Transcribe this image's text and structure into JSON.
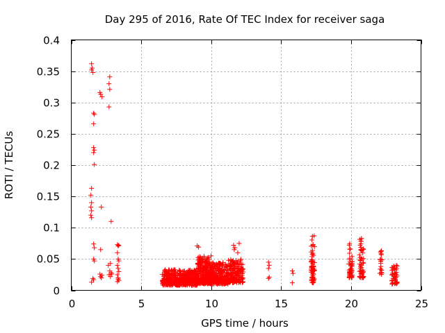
{
  "chart_data": {
    "type": "scatter",
    "title": "Day 295 of 2016, Rate Of TEC Index for receiver saga",
    "xlabel": "GPS time / hours",
    "ylabel": "ROTI / TECUs",
    "xlim": [
      0,
      25
    ],
    "ylim": [
      0,
      0.4
    ],
    "xticks": [
      "0",
      "5",
      "10",
      "15",
      "20",
      "25"
    ],
    "yticks": [
      "0",
      "0.05",
      "0.1",
      "0.15",
      "0.2",
      "0.25",
      "0.3",
      "0.35",
      "0.4"
    ],
    "grid": true,
    "marker": "+",
    "color": "#ff0000",
    "series": [
      {
        "name": "ROTI",
        "points": [
          [
            1.45,
            0.362
          ],
          [
            1.45,
            0.352
          ],
          [
            1.5,
            0.355
          ],
          [
            1.55,
            0.348
          ],
          [
            1.6,
            0.283
          ],
          [
            1.65,
            0.281
          ],
          [
            1.6,
            0.266
          ],
          [
            1.6,
            0.228
          ],
          [
            1.65,
            0.224
          ],
          [
            1.6,
            0.22
          ],
          [
            1.65,
            0.201
          ],
          [
            1.45,
            0.163
          ],
          [
            1.4,
            0.152
          ],
          [
            1.45,
            0.14
          ],
          [
            1.4,
            0.133
          ],
          [
            1.45,
            0.127
          ],
          [
            1.4,
            0.12
          ],
          [
            1.45,
            0.116
          ],
          [
            1.6,
            0.074
          ],
          [
            1.65,
            0.068
          ],
          [
            1.6,
            0.05
          ],
          [
            1.65,
            0.047
          ],
          [
            1.55,
            0.019
          ],
          [
            1.6,
            0.017
          ],
          [
            1.45,
            0.013
          ],
          [
            2.05,
            0.316
          ],
          [
            2.1,
            0.313
          ],
          [
            2.2,
            0.309
          ],
          [
            2.15,
            0.133
          ],
          [
            2.1,
            0.065
          ],
          [
            2.05,
            0.026
          ],
          [
            2.1,
            0.022
          ],
          [
            2.15,
            0.02
          ],
          [
            2.2,
            0.024
          ],
          [
            2.75,
            0.341
          ],
          [
            2.7,
            0.33
          ],
          [
            2.75,
            0.321
          ],
          [
            2.7,
            0.293
          ],
          [
            2.85,
            0.11
          ],
          [
            2.8,
            0.043
          ],
          [
            2.65,
            0.04
          ],
          [
            2.75,
            0.031
          ],
          [
            2.85,
            0.028
          ],
          [
            2.7,
            0.025
          ],
          [
            2.8,
            0.022
          ],
          [
            2.9,
            0.026
          ],
          [
            3.3,
            0.073
          ],
          [
            3.35,
            0.071
          ],
          [
            3.4,
            0.072
          ],
          [
            3.3,
            0.06
          ],
          [
            3.35,
            0.05
          ],
          [
            3.4,
            0.047
          ],
          [
            3.3,
            0.04
          ],
          [
            3.35,
            0.035
          ],
          [
            3.4,
            0.03
          ],
          [
            3.3,
            0.025
          ],
          [
            3.35,
            0.02
          ],
          [
            3.4,
            0.016
          ],
          [
            3.3,
            0.014
          ],
          [
            3.35,
            0.018
          ],
          [
            9.0,
            0.071
          ],
          [
            9.1,
            0.069
          ],
          [
            11.6,
            0.072
          ],
          [
            11.7,
            0.068
          ],
          [
            11.65,
            0.065
          ],
          [
            12.0,
            0.075
          ],
          [
            11.9,
            0.06
          ],
          [
            14.1,
            0.045
          ],
          [
            14.15,
            0.04
          ],
          [
            14.1,
            0.035
          ],
          [
            14.15,
            0.021
          ],
          [
            14.1,
            0.019
          ],
          [
            15.8,
            0.031
          ],
          [
            15.85,
            0.027
          ],
          [
            15.8,
            0.012
          ]
        ],
        "clusters": [
          {
            "x": [
              6.5,
              9.0
            ],
            "y": [
              0.008,
              0.033
            ],
            "count": 420
          },
          {
            "x": [
              9.0,
              10.0
            ],
            "y": [
              0.01,
              0.055
            ],
            "count": 260
          },
          {
            "x": [
              10.0,
              11.2
            ],
            "y": [
              0.01,
              0.045
            ],
            "count": 240
          },
          {
            "x": [
              11.2,
              12.3
            ],
            "y": [
              0.012,
              0.05
            ],
            "count": 170
          },
          {
            "x": [
              17.15,
              17.4
            ],
            "y": [
              0.012,
              0.088
            ],
            "count": 60
          },
          {
            "x": [
              19.85,
              20.1
            ],
            "y": [
              0.02,
              0.077
            ],
            "count": 50
          },
          {
            "x": [
              20.6,
              20.9
            ],
            "y": [
              0.02,
              0.085
            ],
            "count": 55
          },
          {
            "x": [
              22.05,
              22.2
            ],
            "y": [
              0.025,
              0.07
            ],
            "count": 18
          },
          {
            "x": [
              22.9,
              23.3
            ],
            "y": [
              0.01,
              0.043
            ],
            "count": 45
          }
        ]
      }
    ]
  }
}
